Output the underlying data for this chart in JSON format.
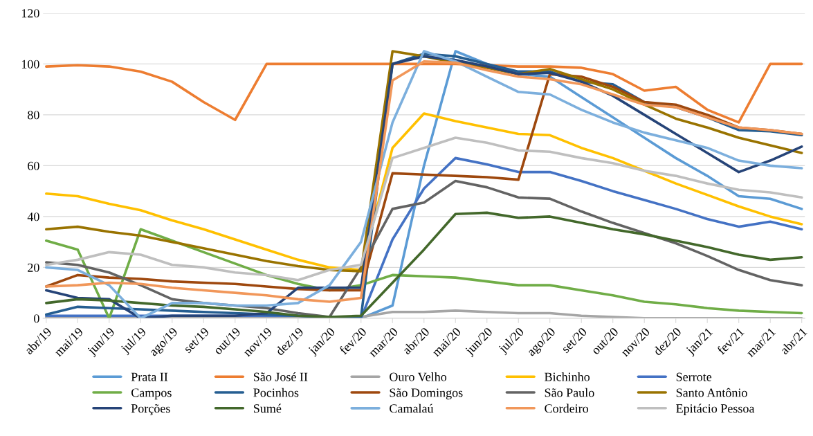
{
  "chart_data": {
    "type": "line",
    "categories": [
      "abr/19",
      "mai/19",
      "jun/19",
      "jul/19",
      "ago/19",
      "set/19",
      "out/19",
      "nov/19",
      "dez/19",
      "jan/20",
      "fev/20",
      "mar/20",
      "abr/20",
      "mai/20",
      "jun/20",
      "jul/20",
      "ago/20",
      "set/20",
      "out/20",
      "nov/20",
      "dez/20",
      "jan/21",
      "fev/21",
      "mar/21",
      "abr/21"
    ],
    "ylim": [
      0,
      120
    ],
    "yticks": [
      0,
      20,
      40,
      60,
      80,
      100,
      120
    ],
    "grid": "y",
    "legend": "bottom",
    "series": [
      {
        "name": "Prata II",
        "color": "#5b9bd5",
        "values": [
          0,
          0,
          0,
          0,
          0,
          0,
          0,
          0,
          0,
          0,
          0,
          5,
          60,
          105,
          100,
          96,
          95,
          87,
          79,
          71,
          63,
          56,
          48,
          47,
          43
        ]
      },
      {
        "name": "São José II",
        "color": "#ed7d31",
        "values": [
          99,
          99.5,
          99,
          97,
          93,
          85,
          78,
          100,
          100,
          100,
          100,
          100,
          100,
          100,
          99.5,
          99,
          99,
          98.5,
          96,
          89.5,
          91,
          82,
          77,
          100,
          100
        ]
      },
      {
        "name": "Ouro Velho",
        "color": "#a5a5a5",
        "values": [
          0.5,
          0.5,
          0.5,
          0.5,
          0.5,
          0.5,
          0.5,
          0.5,
          0.5,
          0.5,
          0.5,
          2.5,
          2.5,
          3,
          2.5,
          2,
          2,
          1,
          0.5,
          0,
          0,
          0,
          0,
          0,
          0
        ]
      },
      {
        "name": "Bichinho",
        "color": "#ffc000",
        "values": [
          49,
          48,
          45,
          42.5,
          38.5,
          35,
          31,
          27,
          23,
          20,
          19,
          67,
          80.5,
          77.5,
          75,
          72.5,
          72,
          67,
          63,
          58,
          53,
          48.5,
          44,
          40,
          37
        ]
      },
      {
        "name": "Serrote",
        "color": "#4472c4",
        "values": [
          1,
          1,
          1,
          1,
          1,
          1,
          1,
          1,
          1,
          0.5,
          0,
          31,
          51,
          63,
          60.5,
          57.5,
          57.5,
          54,
          50,
          46.5,
          43,
          39,
          36,
          38,
          35
        ]
      },
      {
        "name": "Campos",
        "color": "#70ad47",
        "values": [
          30.5,
          27,
          0,
          35,
          30.5,
          26,
          21.5,
          17,
          13.5,
          11,
          13,
          17,
          16.5,
          16,
          14.5,
          13,
          13,
          11,
          9,
          6.5,
          5.5,
          4,
          3,
          2.5,
          2
        ]
      },
      {
        "name": "Pocinhos",
        "color": "#255e91",
        "values": [
          1.5,
          4.5,
          4,
          3.5,
          3,
          2.5,
          2,
          1.5,
          1,
          0.5,
          0.5,
          100,
          104,
          103,
          100,
          97,
          97,
          93,
          92,
          85,
          83,
          79,
          74,
          73.5,
          72
        ]
      },
      {
        "name": "São Domingos",
        "color": "#9e480e",
        "values": [
          12.5,
          17,
          16,
          15.5,
          14.5,
          14,
          13.5,
          12.5,
          11.5,
          11,
          11,
          57,
          56.5,
          56,
          55.5,
          54.5,
          96,
          95,
          91,
          85,
          84,
          80,
          75,
          74,
          72.5
        ]
      },
      {
        "name": "São Paulo",
        "color": "#636363",
        "values": [
          22,
          21,
          18,
          13,
          7.5,
          6,
          5,
          4,
          2,
          0.5,
          20,
          43,
          45.5,
          54,
          51.5,
          47.5,
          47,
          42,
          37.5,
          33.5,
          29.5,
          24.5,
          19,
          15,
          13
        ]
      },
      {
        "name": "Santo Antônio",
        "color": "#997300",
        "values": [
          35,
          36,
          34,
          32.5,
          30,
          27.5,
          25,
          22.5,
          20.5,
          19,
          18.5,
          105,
          103,
          100.5,
          98.5,
          96,
          98,
          94,
          90,
          84,
          78.5,
          75,
          71,
          68,
          65
        ]
      },
      {
        "name": "Porções",
        "color": "#264478",
        "values": [
          11,
          8,
          7.5,
          0,
          1,
          1,
          1,
          2,
          12,
          12,
          12,
          100,
          103,
          101.5,
          99,
          96,
          96.5,
          93,
          87.5,
          80,
          72.5,
          65,
          57.5,
          62,
          67.5
        ]
      },
      {
        "name": "Sumé",
        "color": "#43682b",
        "values": [
          6,
          7.5,
          7,
          6,
          5,
          4.5,
          3.5,
          2.5,
          1,
          0.5,
          1,
          14,
          27,
          41,
          41.5,
          39.5,
          40,
          37.5,
          35,
          33,
          30.5,
          28,
          25,
          23,
          24
        ]
      },
      {
        "name": "Camalaú",
        "color": "#7cafdd",
        "values": [
          20,
          19,
          13,
          0,
          6,
          6,
          5,
          5,
          6,
          13,
          30,
          77,
          105,
          101,
          95,
          89,
          88,
          82,
          77,
          73,
          70,
          67,
          62,
          60,
          59
        ]
      },
      {
        "name": "Cordeiro",
        "color": "#f1975a",
        "values": [
          12.5,
          13,
          14,
          13.5,
          12,
          11,
          10,
          9,
          7.5,
          6.5,
          8,
          93.5,
          101,
          100.5,
          97.5,
          95,
          94,
          92,
          88,
          84,
          83,
          79,
          75,
          74,
          72.5
        ]
      },
      {
        "name": "Epitácio Pessoa",
        "color": "#bfbfbf",
        "values": [
          21,
          23,
          26,
          25,
          21,
          20,
          18,
          17,
          15,
          19,
          21,
          63,
          67,
          71,
          69,
          66,
          65.5,
          63,
          61,
          58,
          56,
          53,
          50.5,
          49.5,
          47.5
        ]
      }
    ]
  }
}
